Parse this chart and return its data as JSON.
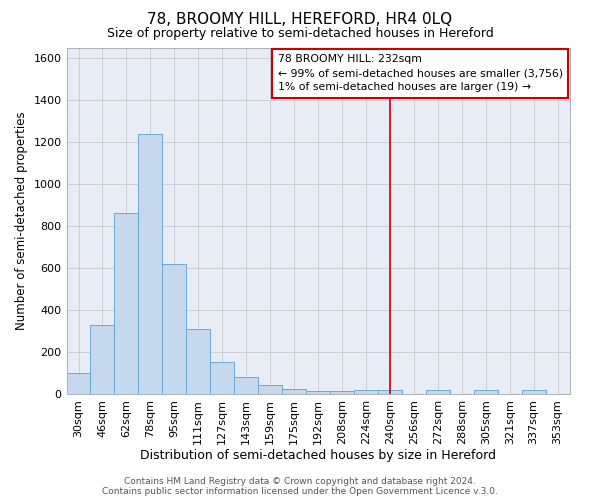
{
  "title": "78, BROOMY HILL, HEREFORD, HR4 0LQ",
  "subtitle": "Size of property relative to semi-detached houses in Hereford",
  "xlabel": "Distribution of semi-detached houses by size in Hereford",
  "ylabel": "Number of semi-detached properties",
  "categories": [
    "30sqm",
    "46sqm",
    "62sqm",
    "78sqm",
    "95sqm",
    "111sqm",
    "127sqm",
    "143sqm",
    "159sqm",
    "175sqm",
    "192sqm",
    "208sqm",
    "224sqm",
    "240sqm",
    "256sqm",
    "272sqm",
    "288sqm",
    "305sqm",
    "321sqm",
    "337sqm",
    "353sqm"
  ],
  "values": [
    100,
    330,
    860,
    1240,
    620,
    310,
    150,
    80,
    45,
    25,
    15,
    15,
    20,
    20,
    0,
    20,
    0,
    20,
    0,
    20,
    0
  ],
  "bar_color": "#c5d8ee",
  "bar_edge_color": "#6aaad4",
  "background_color": "#e8ecf5",
  "grid_color": "#c8c8d0",
  "vline_index": 13,
  "vline_color": "#cc0000",
  "legend_title": "78 BROOMY HILL: 232sqm",
  "legend_line1": "← 99% of semi-detached houses are smaller (3,756)",
  "legend_line2": "1% of semi-detached houses are larger (19) →",
  "legend_box_color": "#cc0000",
  "ylim": [
    0,
    1650
  ],
  "yticks": [
    0,
    200,
    400,
    600,
    800,
    1000,
    1200,
    1400,
    1600
  ],
  "footer": "Contains HM Land Registry data © Crown copyright and database right 2024.\nContains public sector information licensed under the Open Government Licence v.3.0.",
  "title_fontsize": 11,
  "subtitle_fontsize": 9,
  "xlabel_fontsize": 9,
  "ylabel_fontsize": 8.5,
  "tick_fontsize": 8,
  "footer_fontsize": 6.5
}
